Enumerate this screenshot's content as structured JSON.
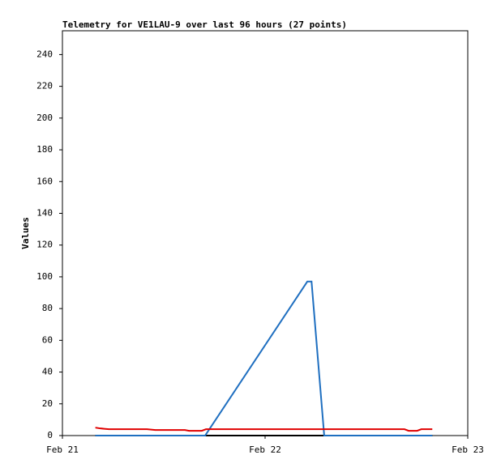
{
  "chart_data": {
    "type": "line",
    "title": "Telemetry for VE1LAU-9 over last 96 hours (27 points)",
    "y_label": "Values",
    "xlim": [
      0,
      48
    ],
    "xticks": [
      {
        "value": 0,
        "label": "Feb 21"
      },
      {
        "value": 24,
        "label": "Feb 22"
      },
      {
        "value": 48,
        "label": "Feb 23"
      }
    ],
    "ylim": [
      0,
      255
    ],
    "yticks": [
      0,
      20,
      40,
      60,
      80,
      100,
      120,
      140,
      160,
      180,
      200,
      220,
      240
    ],
    "series": [
      {
        "color": "#000000",
        "x": [
          3.9,
          43.8
        ],
        "values": [
          0,
          0
        ]
      },
      {
        "color": "#1f6fc0",
        "x": [
          3.9,
          16.9,
          29,
          29.5,
          31,
          43.8
        ],
        "values": [
          0,
          0,
          97,
          97,
          0,
          0
        ]
      },
      {
        "color": "#e00000",
        "x": [
          3.9,
          4.5,
          5.5,
          10,
          11,
          14.5,
          15,
          16.5,
          17,
          40.5,
          41,
          42,
          42.5,
          43.8
        ],
        "values": [
          5,
          4.5,
          4,
          4,
          3.5,
          3.5,
          3,
          3,
          4,
          4,
          3,
          3,
          4,
          4
        ]
      }
    ]
  }
}
